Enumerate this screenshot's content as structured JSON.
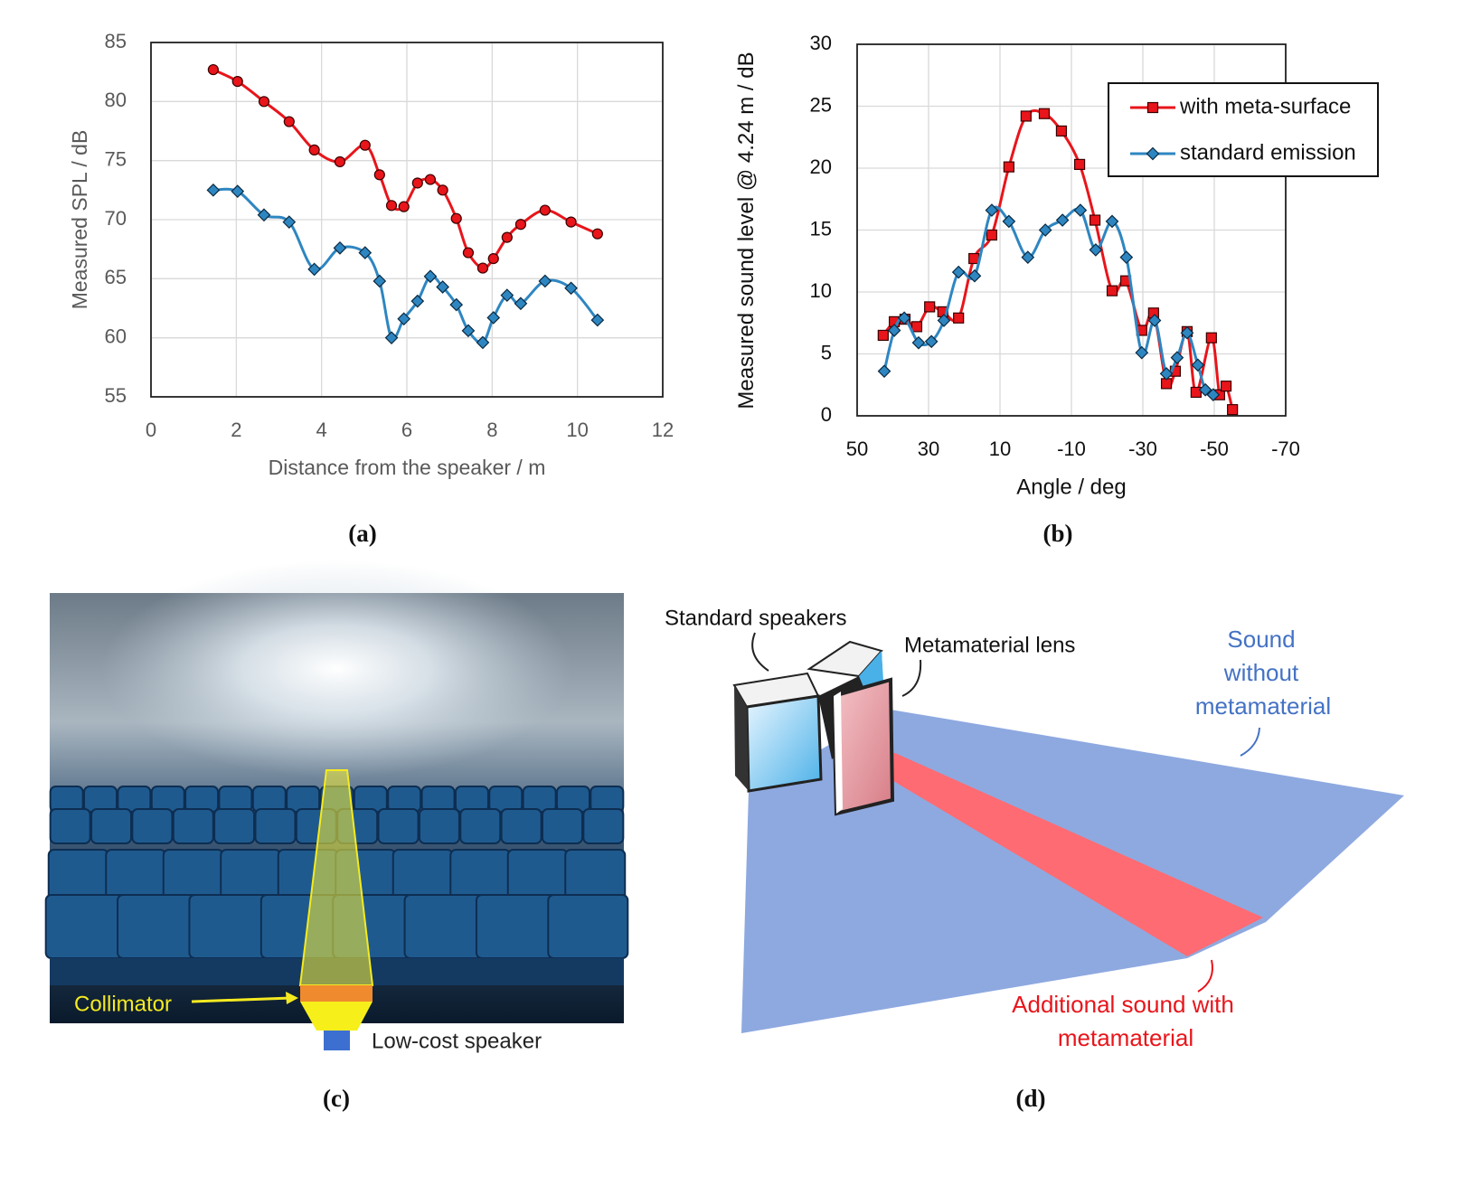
{
  "chart_data": [
    {
      "type": "line",
      "xlabel": "Distance from the speaker / m",
      "ylabel": "Measured SPL / dB",
      "x": [
        1.46,
        2.03,
        2.65,
        3.24,
        3.83,
        4.43,
        5.02,
        5.36,
        5.64,
        5.93,
        6.25,
        6.55,
        6.84,
        7.16,
        7.44,
        7.78,
        8.03,
        8.35,
        8.67,
        9.24,
        9.85,
        10.47
      ],
      "series": [
        {
          "name": "red",
          "color": "#e8151b",
          "marker": "circle",
          "values": [
            82.7,
            81.7,
            80.0,
            78.3,
            75.9,
            74.9,
            76.3,
            73.8,
            71.2,
            71.1,
            73.1,
            73.4,
            72.5,
            70.1,
            67.2,
            65.9,
            66.7,
            68.5,
            69.6,
            70.8,
            69.8,
            68.8
          ]
        },
        {
          "name": "blue",
          "color": "#2e86c1",
          "marker": "diamond",
          "values": [
            72.5,
            72.4,
            70.4,
            69.8,
            65.8,
            67.6,
            67.2,
            64.8,
            60.0,
            61.6,
            63.1,
            65.2,
            64.3,
            62.8,
            60.6,
            59.6,
            61.7,
            63.6,
            62.9,
            64.8,
            64.2,
            61.5
          ]
        }
      ],
      "xlim": [
        0,
        12
      ],
      "xticks": [
        0,
        2,
        4,
        6,
        8,
        10,
        12
      ],
      "ylim": [
        55,
        85
      ],
      "yticks": [
        55,
        60,
        65,
        70,
        75,
        80,
        85
      ],
      "grid": true,
      "legend": false
    },
    {
      "type": "line",
      "xlabel": "Angle / deg",
      "ylabel": "Measured sound level @ 4.24 m / dB",
      "series": [
        {
          "name": "with meta-surface",
          "color": "#e8151b",
          "marker": "square",
          "x": [
            42.7,
            39.6,
            36.6,
            33.3,
            29.7,
            26,
            21.6,
            17.3,
            12.3,
            7.5,
            2.7,
            -2.4,
            -7.2,
            -12.3,
            -16.6,
            -21.4,
            -25.2,
            -29.7,
            -33.0,
            -36.6,
            -39.1,
            -42.4,
            -44.9,
            -49.2,
            -51.5,
            -53.3,
            -55.1
          ],
          "values": [
            6.5,
            7.6,
            7.8,
            7.2,
            8.8,
            8.4,
            7.9,
            12.7,
            14.6,
            20.1,
            24.2,
            24.4,
            23.0,
            20.3,
            15.8,
            10.1,
            10.9,
            6.9,
            8.3,
            2.6,
            3.6,
            6.8,
            1.9,
            6.3,
            1.7,
            2.4,
            0.5
          ]
        },
        {
          "name": "standard emission",
          "color": "#2e86c1",
          "marker": "diamond",
          "x": [
            42.4,
            39.6,
            36.8,
            32.8,
            29.2,
            25.7,
            21.6,
            17.1,
            12.3,
            7.5,
            2.2,
            -2.7,
            -7.5,
            -12.5,
            -16.8,
            -21.4,
            -25.4,
            -29.7,
            -33.3,
            -36.6,
            -39.6,
            -42.4,
            -45.4,
            -47.5,
            -49.7
          ],
          "values": [
            3.6,
            6.9,
            7.9,
            5.9,
            6.0,
            7.7,
            11.6,
            11.3,
            16.6,
            15.7,
            12.8,
            15.0,
            15.8,
            16.6,
            13.4,
            15.7,
            12.8,
            5.1,
            7.7,
            3.4,
            4.7,
            6.7,
            4.1,
            2.1,
            1.7
          ]
        }
      ],
      "xlim": [
        50,
        -70
      ],
      "xticks": [
        50,
        30,
        10,
        -10,
        -30,
        -50,
        -70
      ],
      "ylim": [
        0,
        30
      ],
      "yticks": [
        0,
        5,
        10,
        15,
        20,
        25,
        30
      ],
      "grid": true,
      "legend": "upper right"
    }
  ],
  "captions": [
    "(a)",
    "(b)",
    "(c)",
    "(d)"
  ],
  "illustration_c": {
    "collimator": "Collimator",
    "speaker": "Low-cost speaker"
  },
  "illustration_d": {
    "standard": "Standard speakers",
    "lens": "Metamaterial lens",
    "sound_without": [
      "Sound",
      "without",
      "metamaterial"
    ],
    "additional": [
      "Additional sound with",
      "metamaterial"
    ]
  }
}
